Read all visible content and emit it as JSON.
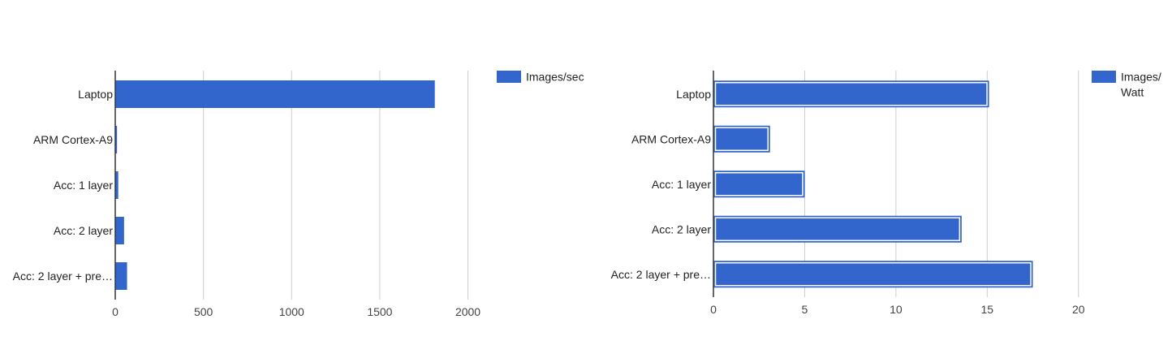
{
  "chart_data": [
    {
      "type": "bar",
      "orientation": "horizontal",
      "categories": [
        "Laptop",
        "ARM Cortex-A9",
        "Acc: 1 layer",
        "Acc: 2 layer",
        "Acc: 2 layer + pre…"
      ],
      "series": [
        {
          "name": "Images/sec",
          "values": [
            1812,
            10,
            17,
            50,
            67
          ]
        }
      ],
      "xlim": [
        0,
        2200
      ],
      "xticks": [
        0,
        500,
        1000,
        1500,
        2000
      ],
      "tick_labels": [
        "0",
        "500",
        "1000",
        "1500",
        "2000"
      ],
      "grid": true,
      "legend": "top-right",
      "bar_outline": false
    },
    {
      "type": "bar",
      "orientation": "horizontal",
      "categories": [
        "Laptop",
        "ARM Cortex-A9",
        "Acc: 1 layer",
        "Acc: 2 layer",
        "Acc: 2 layer + pre…"
      ],
      "series": [
        {
          "name": "Images/ Watt",
          "values": [
            15.1,
            3.1,
            5.0,
            13.6,
            17.5
          ]
        }
      ],
      "xlim": [
        0,
        20.5
      ],
      "xticks": [
        0,
        5,
        10,
        15,
        20
      ],
      "tick_labels": [
        "0",
        "5",
        "10",
        "15",
        "20"
      ],
      "grid": true,
      "legend": "top-right",
      "bar_outline": true
    }
  ],
  "colors": {
    "bar": "#3366cc",
    "grid": "#cccccc",
    "axis": "#333333",
    "text": "#222222",
    "tick_text": "#444444"
  }
}
